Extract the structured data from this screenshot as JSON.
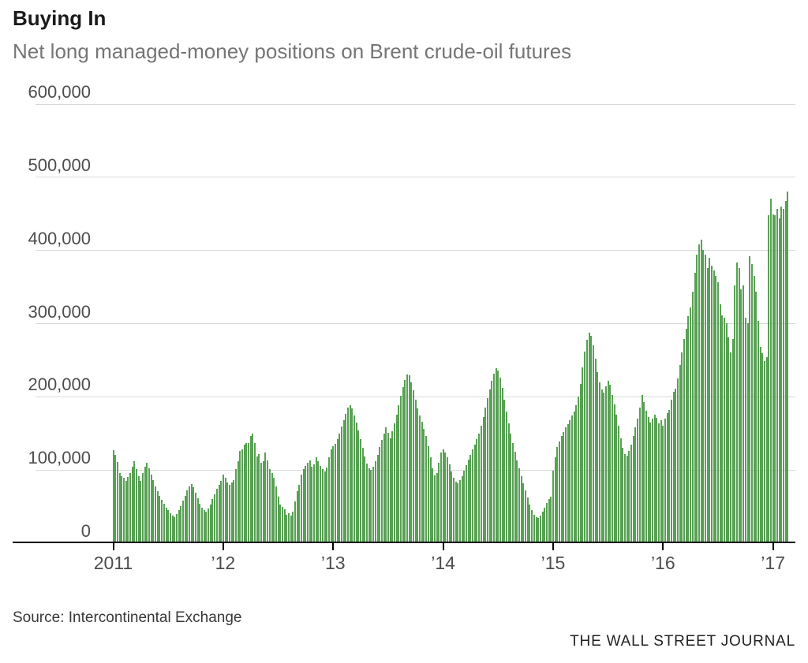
{
  "header": {
    "title": "Buying In",
    "subtitle": "Net long managed-money positions on Brent crude-oil futures"
  },
  "footer": {
    "source": "Source: Intercontinental Exchange",
    "credit": "THE WALL STREET JOURNAL"
  },
  "colors": {
    "bar": "#58a054",
    "grid": "#d9d9d9",
    "axis": "#000000",
    "title": "#1a1a1a",
    "subtitle": "#757575",
    "tick_label": "#4d4d4d"
  },
  "chart_data": {
    "type": "bar",
    "title": "Buying In",
    "subtitle": "Net long managed-money positions on Brent crude-oil futures",
    "xlabel": "",
    "ylabel": "",
    "unit": "contracts",
    "frequency": "weekly",
    "grid": "horizontal",
    "legend": "none",
    "ylim": [
      0,
      600000
    ],
    "y_ticks": [
      {
        "value": 600000,
        "label": "600,000"
      },
      {
        "value": 500000,
        "label": "500,000"
      },
      {
        "value": 400000,
        "label": "400,000"
      },
      {
        "value": 300000,
        "label": "300,000"
      },
      {
        "value": 200000,
        "label": "200,000"
      },
      {
        "value": 100000,
        "label": "100,000"
      },
      {
        "value": 0,
        "label": "0"
      }
    ],
    "x_ticks": [
      {
        "week": 0,
        "label": "2011"
      },
      {
        "week": 52,
        "label": "’12"
      },
      {
        "week": 104,
        "label": "’13"
      },
      {
        "week": 156,
        "label": "’14"
      },
      {
        "week": 208,
        "label": "’15"
      },
      {
        "week": 260,
        "label": "’16"
      },
      {
        "week": 312,
        "label": "’17"
      }
    ],
    "values": [
      127000,
      121000,
      111000,
      96000,
      92000,
      89000,
      85000,
      91000,
      96000,
      105000,
      112000,
      101000,
      92000,
      85000,
      96000,
      104000,
      110000,
      102000,
      94000,
      86000,
      78000,
      71000,
      65000,
      59000,
      54000,
      49000,
      45000,
      41000,
      38000,
      36000,
      40000,
      45000,
      51000,
      58000,
      65000,
      72000,
      78000,
      81000,
      76000,
      69000,
      61000,
      54000,
      48000,
      45000,
      43000,
      47000,
      53000,
      60000,
      67000,
      74000,
      80000,
      85000,
      94000,
      89000,
      83000,
      80000,
      83000,
      86000,
      101000,
      112000,
      126000,
      128000,
      135000,
      137000,
      137000,
      146000,
      150000,
      137000,
      119000,
      122000,
      110000,
      112000,
      124000,
      113000,
      101000,
      96000,
      89000,
      78000,
      64000,
      53000,
      50000,
      46000,
      39000,
      41000,
      38000,
      43000,
      57000,
      71000,
      80000,
      94000,
      101000,
      106000,
      110000,
      113000,
      104000,
      108000,
      117000,
      112000,
      106000,
      101000,
      98000,
      103000,
      117000,
      128000,
      132000,
      136000,
      142000,
      150000,
      159000,
      168000,
      177000,
      185000,
      189000,
      184000,
      175000,
      165000,
      154000,
      142000,
      130000,
      118000,
      109000,
      102000,
      100000,
      104000,
      112000,
      121000,
      131000,
      141000,
      150000,
      158000,
      151000,
      143000,
      153000,
      164000,
      176000,
      189000,
      201000,
      213000,
      223000,
      231000,
      229000,
      220000,
      209000,
      196000,
      184000,
      175000,
      166000,
      156000,
      146000,
      133000,
      117000,
      102000,
      93000,
      96000,
      110000,
      124000,
      128000,
      124000,
      117000,
      108000,
      98000,
      89000,
      84000,
      82000,
      86000,
      92000,
      99000,
      107000,
      114000,
      121000,
      128000,
      135000,
      142000,
      150000,
      160000,
      172000,
      185000,
      198000,
      210000,
      222000,
      232000,
      239000,
      236000,
      226000,
      212000,
      196000,
      180000,
      164000,
      150000,
      137000,
      125000,
      113000,
      102000,
      92000,
      82000,
      72000,
      62000,
      53000,
      45000,
      39000,
      36000,
      35000,
      38000,
      43000,
      49000,
      55000,
      60000,
      64000,
      99000,
      117000,
      131000,
      139000,
      146000,
      152000,
      158000,
      163000,
      168000,
      174000,
      180000,
      188000,
      200000,
      218000,
      240000,
      262000,
      278000,
      288000,
      283000,
      270000,
      252000,
      234000,
      220000,
      210000,
      206000,
      214000,
      222000,
      216000,
      202000,
      190000,
      176000,
      160000,
      143000,
      130000,
      122000,
      120000,
      126000,
      135000,
      146000,
      158000,
      170000,
      185000,
      202000,
      193000,
      181000,
      172000,
      165000,
      170000,
      176000,
      171000,
      164000,
      168000,
      161000,
      170000,
      178000,
      182000,
      196000,
      207000,
      211000,
      225000,
      244000,
      261000,
      279000,
      293000,
      310000,
      322000,
      344000,
      369000,
      394000,
      408000,
      415000,
      401000,
      394000,
      376000,
      390000,
      379000,
      373000,
      365000,
      357000,
      326000,
      311000,
      308000,
      301000,
      281000,
      261000,
      279000,
      352000,
      384000,
      376000,
      347000,
      352000,
      308000,
      301000,
      392000,
      381000,
      365000,
      344000,
      304000,
      268000,
      260000,
      249000,
      254000,
      448000,
      471000,
      449000,
      448000,
      457000,
      444000,
      460000,
      457000,
      468000,
      480000
    ]
  }
}
